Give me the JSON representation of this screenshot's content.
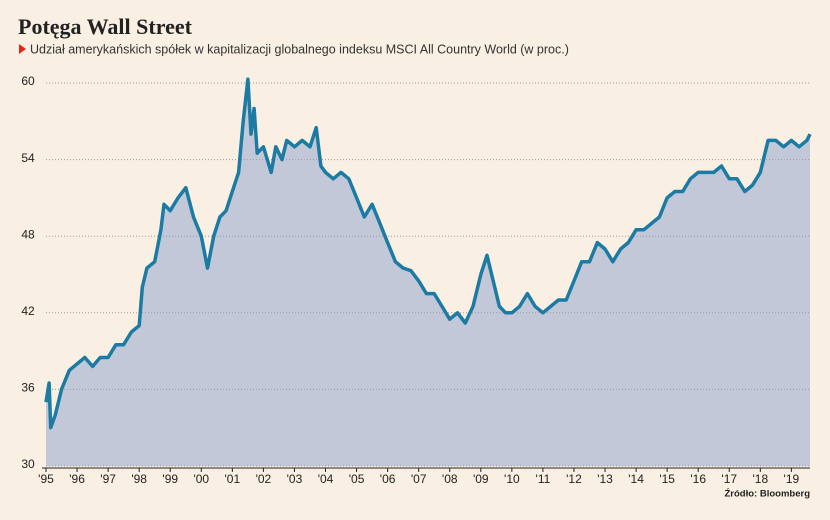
{
  "chart_data": {
    "type": "area_line",
    "title": "Potęga Wall Street",
    "subtitle": "Udział amerykańskich spółek w kapitalizacji globalnego indeksu MSCI All Country World (w proc.)",
    "source": "Źródło: Bloomberg",
    "color": "#1b7ba3",
    "fill_color": "#c3c8d8",
    "x": [
      1995.0,
      1995.1,
      1995.15,
      1995.3,
      1995.5,
      1995.75,
      1996.0,
      1996.25,
      1996.5,
      1996.75,
      1997.0,
      1997.25,
      1997.5,
      1997.75,
      1998.0,
      1998.1,
      1998.25,
      1998.5,
      1998.7,
      1998.8,
      1999.0,
      1999.25,
      1999.5,
      1999.75,
      2000.0,
      2000.2,
      2000.4,
      2000.6,
      2000.8,
      2001.0,
      2001.2,
      2001.35,
      2001.5,
      2001.6,
      2001.7,
      2001.8,
      2002.0,
      2002.25,
      2002.4,
      2002.6,
      2002.75,
      2003.0,
      2003.25,
      2003.5,
      2003.7,
      2003.85,
      2004.0,
      2004.25,
      2004.5,
      2004.75,
      2005.0,
      2005.25,
      2005.5,
      2005.75,
      2006.0,
      2006.25,
      2006.5,
      2006.75,
      2007.0,
      2007.25,
      2007.5,
      2007.75,
      2008.0,
      2008.25,
      2008.5,
      2008.75,
      2009.0,
      2009.2,
      2009.4,
      2009.6,
      2009.8,
      2010.0,
      2010.25,
      2010.5,
      2010.75,
      2011.0,
      2011.25,
      2011.5,
      2011.75,
      2012.0,
      2012.25,
      2012.5,
      2012.75,
      2013.0,
      2013.25,
      2013.5,
      2013.75,
      2014.0,
      2014.25,
      2014.5,
      2014.75,
      2015.0,
      2015.25,
      2015.5,
      2015.75,
      2016.0,
      2016.25,
      2016.5,
      2016.75,
      2017.0,
      2017.25,
      2017.5,
      2017.75,
      2018.0,
      2018.25,
      2018.5,
      2018.75,
      2019.0,
      2019.25,
      2019.5,
      2019.6
    ],
    "values": [
      35,
      36.5,
      33,
      34,
      36,
      37.5,
      38,
      38.5,
      37.8,
      38.5,
      38.5,
      39.5,
      39.5,
      40.5,
      41,
      44,
      45.5,
      46,
      48.5,
      50.5,
      50,
      51,
      51.8,
      49.5,
      48,
      45.5,
      48,
      49.5,
      50,
      51.5,
      53,
      57,
      60.3,
      56,
      58,
      54.5,
      55,
      53,
      55,
      54,
      55.5,
      55,
      55.5,
      55,
      56.5,
      53.5,
      53,
      52.5,
      53,
      52.5,
      51,
      49.5,
      50.5,
      49,
      47.5,
      46,
      45.5,
      45.3,
      44.5,
      43.5,
      43.5,
      42.5,
      41.5,
      42,
      41.2,
      42.5,
      45,
      46.5,
      44.5,
      42.5,
      42,
      42,
      42.5,
      43.5,
      42.5,
      42,
      42.5,
      43,
      43,
      44.5,
      46,
      46,
      47.5,
      47,
      46,
      47,
      47.5,
      48.5,
      48.5,
      49,
      49.5,
      51,
      51.5,
      51.5,
      52.5,
      53,
      53,
      53,
      53.5,
      52.5,
      52.5,
      51.5,
      52,
      53,
      55.5,
      55.5,
      55,
      55.5,
      55,
      55.5,
      56
    ],
    "xlim": [
      1995,
      2019.6
    ],
    "xticks": [
      {
        "value": 1995,
        "label": "'95"
      },
      {
        "value": 1996,
        "label": "'96"
      },
      {
        "value": 1997,
        "label": "'97"
      },
      {
        "value": 1998,
        "label": "'98"
      },
      {
        "value": 1999,
        "label": "'99"
      },
      {
        "value": 2000,
        "label": "'00"
      },
      {
        "value": 2001,
        "label": "'01"
      },
      {
        "value": 2002,
        "label": "'02"
      },
      {
        "value": 2003,
        "label": "'03"
      },
      {
        "value": 2004,
        "label": "'04"
      },
      {
        "value": 2005,
        "label": "'05"
      },
      {
        "value": 2006,
        "label": "'06"
      },
      {
        "value": 2007,
        "label": "'07"
      },
      {
        "value": 2008,
        "label": "'08"
      },
      {
        "value": 2009,
        "label": "'09"
      },
      {
        "value": 2010,
        "label": "'10"
      },
      {
        "value": 2011,
        "label": "'11"
      },
      {
        "value": 2012,
        "label": "'12"
      },
      {
        "value": 2013,
        "label": "'13"
      },
      {
        "value": 2014,
        "label": "'14"
      },
      {
        "value": 2015,
        "label": "'15"
      },
      {
        "value": 2016,
        "label": "'16"
      },
      {
        "value": 2017,
        "label": "'17"
      },
      {
        "value": 2018,
        "label": "'18"
      },
      {
        "value": 2019,
        "label": "'19"
      }
    ],
    "ylim": [
      30,
      60
    ],
    "yticks": [
      30,
      36,
      42,
      48,
      54,
      60
    ],
    "grid": true
  }
}
